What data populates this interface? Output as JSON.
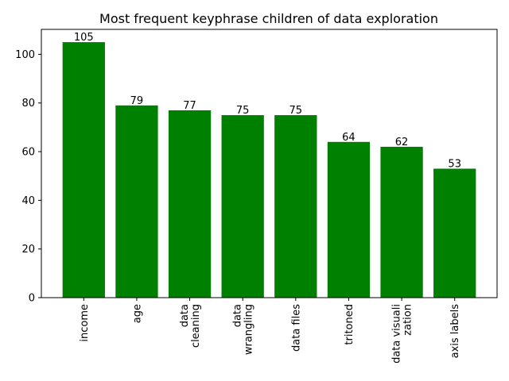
{
  "chart_data": {
    "type": "bar",
    "title": "Most frequent keyphrase children of data exploration",
    "xlabel": "",
    "ylabel": "",
    "categories": [
      [
        "income"
      ],
      [
        "age"
      ],
      [
        "data",
        "cleaning"
      ],
      [
        "data",
        "wrangling"
      ],
      [
        "data files"
      ],
      [
        "tritoned"
      ],
      [
        "data visuali",
        "zation"
      ],
      [
        "axis labels"
      ]
    ],
    "values": [
      105,
      79,
      77,
      75,
      75,
      64,
      62,
      53
    ],
    "data_labels": [
      "105",
      "79",
      "77",
      "75",
      "75",
      "64",
      "62",
      "53"
    ],
    "yticks": [
      0,
      20,
      40,
      60,
      80,
      100
    ],
    "yticks_labels": [
      "0",
      "20",
      "40",
      "60",
      "80",
      "100"
    ],
    "ylim": [
      0,
      110.25
    ],
    "bar_color": "#008000",
    "grid": false,
    "legend": "none"
  }
}
